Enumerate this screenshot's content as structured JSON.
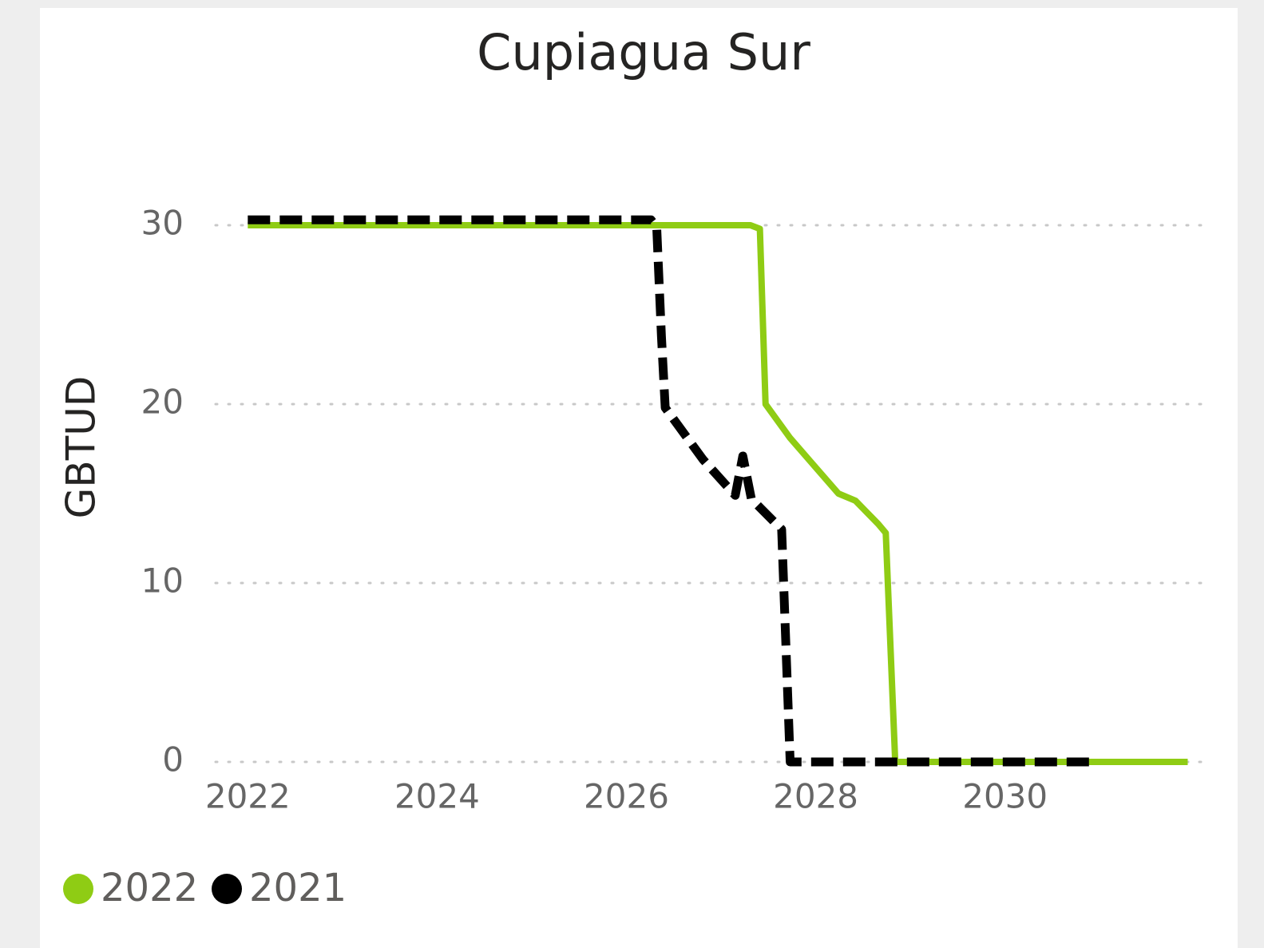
{
  "chart_data": {
    "type": "line",
    "title": "Cupiagua Sur",
    "y_label": "GBTUD",
    "xlim": [
      2021.66,
      2032.12
    ],
    "xticks": [
      2022,
      2024,
      2026,
      2028,
      2030
    ],
    "ylim": [
      0,
      30
    ],
    "yticks": [
      0,
      10,
      20,
      30
    ],
    "grid": true,
    "legend": "bottom-left",
    "series": [
      {
        "name": "2022",
        "color": "#8fcc14",
        "dash": false,
        "x": [
          2022,
          2027.31,
          2027.41,
          2027.47,
          2027.73,
          2028.24,
          2028.42,
          2028.66,
          2028.74,
          2028.84,
          2031.93
        ],
        "values": [
          30,
          30,
          29.8,
          20,
          18.1,
          15,
          14.6,
          13.3,
          12.8,
          0,
          0
        ]
      },
      {
        "name": "2021",
        "color": "#000000",
        "dash": true,
        "x": [
          2022,
          2026.26,
          2026.32,
          2026.37,
          2026.41,
          2026.81,
          2027.15,
          2027.23,
          2027.32,
          2027.64,
          2027.73,
          2030.94
        ],
        "values": [
          30.3,
          30.3,
          29.9,
          23.8,
          19.8,
          16.9,
          14.9,
          17.1,
          14.7,
          13.0,
          0,
          0
        ]
      }
    ]
  }
}
